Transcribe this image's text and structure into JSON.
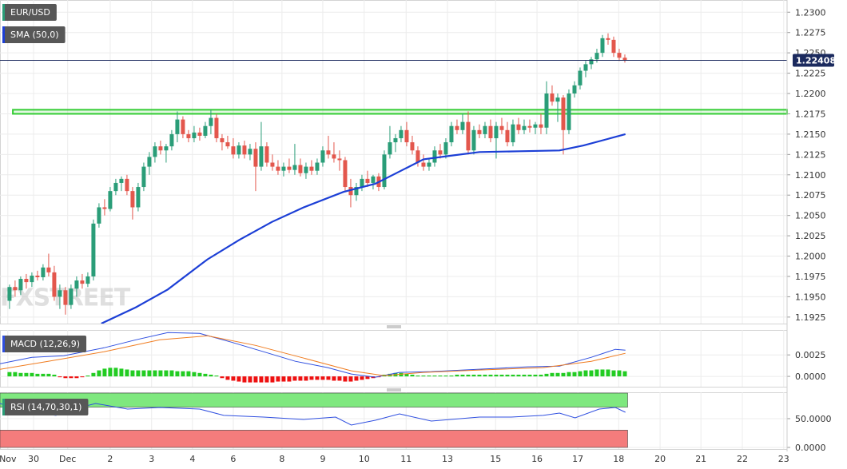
{
  "chart_data": [
    {
      "type": "candlestick",
      "title": "EUR/USD",
      "watermark": "FXSTREET",
      "grid": true,
      "xlim": [
        -1.7,
        139
      ],
      "ylim": [
        1.1917,
        1.2315
      ],
      "xticks": [
        {
          "value": -0.3,
          "label": "Nov"
        },
        {
          "value": 4.3,
          "label": "30"
        },
        {
          "value": 10.4,
          "label": "Dec"
        },
        {
          "value": 18,
          "label": "2"
        },
        {
          "value": 25.4,
          "label": "3"
        },
        {
          "value": 32.7,
          "label": "4"
        },
        {
          "value": 40,
          "label": "6"
        },
        {
          "value": 48.7,
          "label": "8"
        },
        {
          "value": 56,
          "label": "9"
        },
        {
          "value": 63.4,
          "label": "10"
        },
        {
          "value": 70.9,
          "label": "11"
        },
        {
          "value": 78.3,
          "label": "13"
        },
        {
          "value": 86.9,
          "label": "15"
        },
        {
          "value": 94.3,
          "label": "16"
        },
        {
          "value": 101.6,
          "label": "17"
        },
        {
          "value": 108.9,
          "label": "18"
        },
        {
          "value": 116.3,
          "label": "20"
        },
        {
          "value": 123.6,
          "label": "21"
        },
        {
          "value": 131,
          "label": "22"
        },
        {
          "value": 138.4,
          "label": "23"
        }
      ],
      "yticks": [
        {
          "value": 1.23,
          "label": "1.2300"
        },
        {
          "value": 1.2275,
          "label": "1.2275"
        },
        {
          "value": 1.225,
          "label": "1.2250"
        },
        {
          "value": 1.2225,
          "label": "1.2225"
        },
        {
          "value": 1.22,
          "label": "1.2200"
        },
        {
          "value": 1.2175,
          "label": "1.2175"
        },
        {
          "value": 1.215,
          "label": "1.2150"
        },
        {
          "value": 1.2125,
          "label": "1.2125"
        },
        {
          "value": 1.21,
          "label": "1.2100"
        },
        {
          "value": 1.2075,
          "label": "1.2075"
        },
        {
          "value": 1.205,
          "label": "1.2050"
        },
        {
          "value": 1.2025,
          "label": "1.2025"
        },
        {
          "value": 1.2,
          "label": "1.2000"
        },
        {
          "value": 1.1975,
          "label": "1.1975"
        },
        {
          "value": 1.195,
          "label": "1.1950"
        },
        {
          "value": 1.1925,
          "label": "1.1925"
        }
      ],
      "up_color": "#2a9d78",
      "down_color": "#e3574d",
      "candles": {
        "open": [
          1.1945,
          1.1962,
          1.1958,
          1.1972,
          1.1968,
          1.1976,
          1.1974,
          1.1986,
          1.198,
          1.195,
          1.1958,
          1.194,
          1.196,
          1.197,
          1.1966,
          1.1975,
          1.204,
          1.206,
          1.2058,
          1.208,
          1.209,
          1.2095,
          1.208,
          1.206,
          1.2085,
          1.211,
          1.2122,
          1.2135,
          1.213,
          1.2135,
          1.215,
          1.2168,
          1.215,
          1.2145,
          1.2152,
          1.2148,
          1.216,
          1.217,
          1.2145,
          1.214,
          1.2135,
          1.2125,
          1.2136,
          1.2125,
          1.2132,
          1.211,
          1.2135,
          1.2115,
          1.211,
          1.2105,
          1.211,
          1.2106,
          1.2112,
          1.2102,
          1.211,
          1.2105,
          1.2115,
          1.213,
          1.2125,
          1.212,
          1.2118,
          1.2085,
          1.2075,
          1.2085,
          1.2095,
          1.209,
          1.2098,
          1.2085,
          1.2125,
          1.214,
          1.2145,
          1.2155,
          1.214,
          1.213,
          1.2115,
          1.211,
          1.2115,
          1.213,
          1.2125,
          1.214,
          1.216,
          1.2155,
          1.2165,
          1.213,
          1.2155,
          1.215,
          1.216,
          1.2145,
          1.216,
          1.2155,
          1.214,
          1.2162,
          1.2155,
          1.216,
          1.2158,
          1.2162,
          1.2158,
          1.22,
          1.219,
          1.2195,
          1.2155,
          1.22,
          1.221,
          1.2228,
          1.2236,
          1.2242,
          1.225,
          1.2268,
          1.2266,
          1.225,
          1.2244
        ],
        "high": [
          1.1965,
          1.197,
          1.1975,
          1.1978,
          1.198,
          1.1982,
          1.199,
          1.2003,
          1.1988,
          1.1965,
          1.1962,
          1.1965,
          1.1975,
          1.1978,
          1.198,
          1.2045,
          1.2065,
          1.207,
          1.2085,
          1.2095,
          1.2098,
          1.21,
          1.2085,
          1.209,
          1.2115,
          1.2128,
          1.214,
          1.2142,
          1.2138,
          1.2155,
          1.2178,
          1.2172,
          1.2155,
          1.216,
          1.2158,
          1.2165,
          1.218,
          1.2175,
          1.215,
          1.2148,
          1.2145,
          1.214,
          1.2142,
          1.2138,
          1.214,
          1.2165,
          1.214,
          1.2125,
          1.2118,
          1.2115,
          1.212,
          1.2138,
          1.212,
          1.2115,
          1.2118,
          1.212,
          1.2135,
          1.2148,
          1.214,
          1.213,
          1.2122,
          1.2095,
          1.209,
          1.21,
          1.2105,
          1.21,
          1.2102,
          1.213,
          1.216,
          1.215,
          1.216,
          1.2165,
          1.2148,
          1.2135,
          1.2125,
          1.212,
          1.2135,
          1.2138,
          1.2145,
          1.2165,
          1.2168,
          1.2175,
          1.2178,
          1.216,
          1.2162,
          1.2165,
          1.2168,
          1.2165,
          1.217,
          1.2165,
          1.2168,
          1.217,
          1.2168,
          1.2168,
          1.2165,
          1.2175,
          1.2215,
          1.221,
          1.22,
          1.2198,
          1.2205,
          1.2215,
          1.2232,
          1.224,
          1.2245,
          1.2255,
          1.2272,
          1.2274,
          1.227,
          1.2255,
          1.2248
        ],
        "low": [
          1.1935,
          1.195,
          1.1952,
          1.196,
          1.1962,
          1.197,
          1.197,
          1.1975,
          1.1945,
          1.1935,
          1.1928,
          1.1935,
          1.195,
          1.196,
          1.1962,
          1.197,
          1.2035,
          1.205,
          1.2055,
          1.2075,
          1.208,
          1.2075,
          1.2045,
          1.2055,
          1.208,
          1.21,
          1.2115,
          1.2125,
          1.2115,
          1.213,
          1.214,
          1.2145,
          1.214,
          1.214,
          1.2142,
          1.2145,
          1.215,
          1.214,
          1.213,
          1.2132,
          1.212,
          1.212,
          1.212,
          1.2118,
          1.208,
          1.2105,
          1.211,
          1.2105,
          1.21,
          1.2098,
          1.2102,
          1.21,
          1.2098,
          1.2095,
          1.21,
          1.21,
          1.211,
          1.212,
          1.2115,
          1.2105,
          1.208,
          1.206,
          1.2068,
          1.208,
          1.2085,
          1.2082,
          1.208,
          1.2082,
          1.212,
          1.2128,
          1.214,
          1.2135,
          1.2125,
          1.211,
          1.2105,
          1.2105,
          1.211,
          1.212,
          1.212,
          1.2135,
          1.215,
          1.215,
          1.2125,
          1.2125,
          1.2145,
          1.2145,
          1.214,
          1.212,
          1.215,
          1.2135,
          1.2135,
          1.215,
          1.215,
          1.2152,
          1.215,
          1.215,
          1.215,
          1.2185,
          1.2165,
          1.2125,
          1.215,
          1.2195,
          1.2205,
          1.222,
          1.223,
          1.2238,
          1.2245,
          1.226,
          1.2245,
          1.224,
          1.2238
        ],
        "close": [
          1.1962,
          1.1958,
          1.1972,
          1.1968,
          1.1976,
          1.1974,
          1.1986,
          1.198,
          1.195,
          1.1958,
          1.194,
          1.196,
          1.197,
          1.1966,
          1.1975,
          1.204,
          1.206,
          1.2058,
          1.208,
          1.209,
          1.2095,
          1.208,
          1.206,
          1.2085,
          1.211,
          1.2122,
          1.2135,
          1.213,
          1.2135,
          1.215,
          1.2168,
          1.215,
          1.2145,
          1.2152,
          1.2148,
          1.216,
          1.217,
          1.2145,
          1.214,
          1.2135,
          1.2125,
          1.2136,
          1.2125,
          1.2132,
          1.211,
          1.2135,
          1.2115,
          1.211,
          1.2105,
          1.211,
          1.2106,
          1.2112,
          1.2102,
          1.211,
          1.2105,
          1.2115,
          1.213,
          1.2125,
          1.212,
          1.2118,
          1.2085,
          1.2075,
          1.2085,
          1.2095,
          1.209,
          1.2098,
          1.2085,
          1.2125,
          1.214,
          1.2145,
          1.2155,
          1.214,
          1.213,
          1.2115,
          1.211,
          1.2115,
          1.213,
          1.2125,
          1.214,
          1.216,
          1.2155,
          1.2165,
          1.213,
          1.2155,
          1.215,
          1.216,
          1.2145,
          1.216,
          1.2155,
          1.214,
          1.2162,
          1.2155,
          1.216,
          1.2158,
          1.2162,
          1.2158,
          1.22,
          1.219,
          1.2195,
          1.2155,
          1.22,
          1.221,
          1.2228,
          1.2236,
          1.2242,
          1.225,
          1.2268,
          1.2266,
          1.225,
          1.2244,
          1.2241
        ]
      },
      "series": [
        {
          "name": "SMA (50,0)",
          "color": "#1c3fd6",
          "x": [
            16.4,
            22.6,
            28.3,
            35.4,
            41.1,
            46.9,
            52.6,
            59.7,
            65.4,
            69.7,
            74,
            78.3,
            84,
            91.1,
            98.3,
            102.6,
            106.9,
            110.1
          ],
          "values": [
            1.1917,
            1.1937,
            1.1959,
            1.1996,
            1.202,
            1.2042,
            1.206,
            1.2079,
            1.2089,
            1.2104,
            1.2119,
            1.2123,
            1.2128,
            1.2129,
            1.213,
            1.2136,
            1.2144,
            1.215
          ]
        }
      ],
      "zone": {
        "ylim": [
          1.2175,
          1.218
        ],
        "x_start": 0.6,
        "color": "#33cc33"
      },
      "last_price": {
        "value": 1.22408,
        "label": "1.22408",
        "color": "#1b2a5e"
      }
    },
    {
      "type": "macd",
      "title": "MACD (12,26,9)",
      "ylim": [
        -0.0012,
        0.0054
      ],
      "yticks": [
        {
          "value": 0.0025,
          "label": "0.0025"
        },
        {
          "value": 0,
          "label": "0.0000"
        }
      ],
      "series": [
        {
          "color": "#2f4fe0",
          "x": [
            -1.7,
            4,
            9.7,
            16.9,
            22.6,
            28.3,
            34,
            39.7,
            45.4,
            51.1,
            56.9,
            61.1,
            65.4,
            69.7,
            75.4,
            81.1,
            86.9,
            92.6,
            98.3,
            104,
            108.3,
            110.1
          ],
          "values": [
            0.00148,
            0.00222,
            0.00241,
            0.00333,
            0.00426,
            0.00509,
            0.005,
            0.00398,
            0.00287,
            0.00176,
            0.00102,
            0.00028,
            -9e-05,
            0.00046,
            0.00056,
            0.00074,
            0.00093,
            0.00111,
            0.0012,
            0.00222,
            0.00315,
            0.00306
          ]
        },
        {
          "color": "#f07c20",
          "x": [
            -1.7,
            6.9,
            16.9,
            26.9,
            35.4,
            44,
            52.6,
            61.1,
            66.9,
            74,
            84,
            95.4,
            104,
            110.1
          ],
          "values": [
            0.00083,
            0.00176,
            0.00287,
            0.00426,
            0.00472,
            0.00361,
            0.00213,
            0.00065,
            9e-05,
            0.00046,
            0.00074,
            0.00102,
            0.00176,
            0.00269
          ]
        }
      ],
      "histogram": {
        "up_color": "#22cc22",
        "down_color": "#ee1111",
        "values": [
          0.0005,
          0.0005,
          0.0004,
          0.0004,
          0.0004,
          0.0003,
          0.0003,
          0.0003,
          0.0002,
          -0.0001,
          -0.0002,
          -0.0002,
          -0.0002,
          -0.0001,
          0.0001,
          0.0004,
          0.0007,
          0.0009,
          0.001,
          0.001,
          0.0009,
          0.0008,
          0.0007,
          0.0007,
          0.0007,
          0.0007,
          0.0007,
          0.0007,
          0.0007,
          0.0007,
          0.0006,
          0.0006,
          0.0006,
          0.0005,
          0.0004,
          0.0003,
          0.0002,
          0.0001,
          -0.0002,
          -0.0004,
          -0.0005,
          -0.0006,
          -0.0007,
          -0.0007,
          -0.0007,
          -0.0007,
          -0.0007,
          -0.0007,
          -0.0006,
          -0.0006,
          -0.0006,
          -0.0005,
          -0.0005,
          -0.0005,
          -0.0004,
          -0.0004,
          -0.0004,
          -0.0004,
          -0.0005,
          -0.0005,
          -0.0006,
          -0.0006,
          -0.0005,
          -0.0004,
          -0.0003,
          -0.0002,
          -0.0001,
          0.0002,
          0.0003,
          0.0004,
          0.0004,
          0.0003,
          0.0002,
          0.0001,
          0.0001,
          0.0001,
          0.0001,
          0.0001,
          0.0001,
          0.0001,
          0.0002,
          0.0002,
          0.0002,
          0.0002,
          0.0002,
          0.0002,
          0.0002,
          0.0002,
          0.0002,
          0.0002,
          0.0002,
          0.0002,
          0.0002,
          0.0002,
          0.0002,
          0.0002,
          0.0003,
          0.0004,
          0.0004,
          0.0004,
          0.0005,
          0.0005,
          0.0006,
          0.0007,
          0.0007,
          0.0008,
          0.0008,
          0.0008,
          0.0007,
          0.0007,
          0.0006
        ]
      }
    },
    {
      "type": "rsi",
      "title": "RSI (14,70,30,1)",
      "ylim": [
        -2.8,
        95.8
      ],
      "yticks": [
        {
          "value": 50,
          "label": "50.0000"
        },
        {
          "value": 0,
          "label": "0.0000"
        }
      ],
      "bands": [
        {
          "ylim": [
            70,
            100
          ],
          "color": "#7fe87f"
        },
        {
          "ylim": [
            0,
            30
          ],
          "color": "#f47c7c"
        }
      ],
      "series": [
        {
          "color": "#2f4fe0",
          "x": [
            -1.7,
            2.6,
            8.3,
            12.6,
            15.4,
            21.1,
            26.9,
            34,
            38.3,
            45.4,
            52.6,
            58.3,
            61.1,
            65.4,
            69.7,
            75.4,
            84,
            89.7,
            95.4,
            98.3,
            101.1,
            105.4,
            108.3,
            110.1
          ],
          "values": [
            76.4,
            62.5,
            55.6,
            69.4,
            76.4,
            66.7,
            69.4,
            66.7,
            55.6,
            52.8,
            48.6,
            52.8,
            38.9,
            47.2,
            58.3,
            45.8,
            52.8,
            52.8,
            55.6,
            59.7,
            51.4,
            66.7,
            69.4,
            61.1
          ]
        }
      ]
    }
  ]
}
